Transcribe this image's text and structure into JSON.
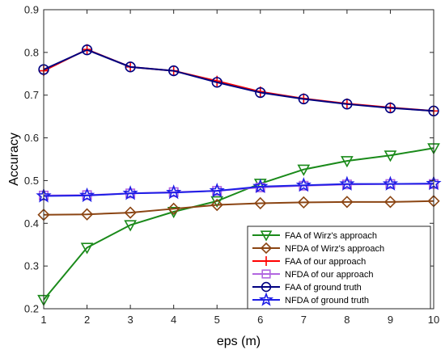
{
  "chart_data": {
    "type": "line",
    "xlabel": "eps (m)",
    "ylabel": "Accuracy",
    "xlim": [
      1,
      10
    ],
    "ylim": [
      0.2,
      0.9
    ],
    "x": [
      1,
      2,
      3,
      4,
      5,
      6,
      7,
      8,
      9,
      10
    ],
    "xticks": [
      "1",
      "2",
      "3",
      "4",
      "5",
      "6",
      "7",
      "8",
      "9",
      "10"
    ],
    "yticks": [
      "0.2",
      "0.3",
      "0.4",
      "0.5",
      "0.6",
      "0.7",
      "0.8",
      "0.9"
    ],
    "grid": false,
    "legend_position": "bottom-right",
    "series": [
      {
        "name": "FAA of Wirz's approach",
        "color": "#1a8a1a",
        "marker": "triangle-down",
        "values": [
          0.221,
          0.343,
          0.396,
          0.427,
          0.452,
          0.493,
          0.526,
          0.546,
          0.559,
          0.576
        ]
      },
      {
        "name": "NFDA of Wirz's approach",
        "color": "#8b4513",
        "marker": "diamond",
        "values": [
          0.42,
          0.421,
          0.425,
          0.434,
          0.443,
          0.447,
          0.449,
          0.45,
          0.45,
          0.452
        ]
      },
      {
        "name": "FAA of our approach",
        "color": "#ff0000",
        "marker": "plus",
        "values": [
          0.757,
          0.807,
          0.766,
          0.757,
          0.733,
          0.708,
          0.692,
          0.68,
          0.671,
          0.663
        ]
      },
      {
        "name": "NFDA of our approach",
        "color": "#b266e0",
        "marker": "square",
        "values": [
          0.465,
          0.466,
          0.47,
          0.473,
          0.476,
          0.484,
          0.488,
          0.491,
          0.492,
          0.492
        ]
      },
      {
        "name": "FAA of ground truth",
        "color": "#000080",
        "marker": "circle",
        "values": [
          0.76,
          0.806,
          0.766,
          0.757,
          0.73,
          0.706,
          0.691,
          0.679,
          0.67,
          0.663
        ]
      },
      {
        "name": "NFDA of ground truth",
        "color": "#1e1ee6",
        "marker": "star",
        "values": [
          0.464,
          0.465,
          0.47,
          0.472,
          0.476,
          0.486,
          0.489,
          0.492,
          0.492,
          0.493
        ]
      }
    ]
  }
}
